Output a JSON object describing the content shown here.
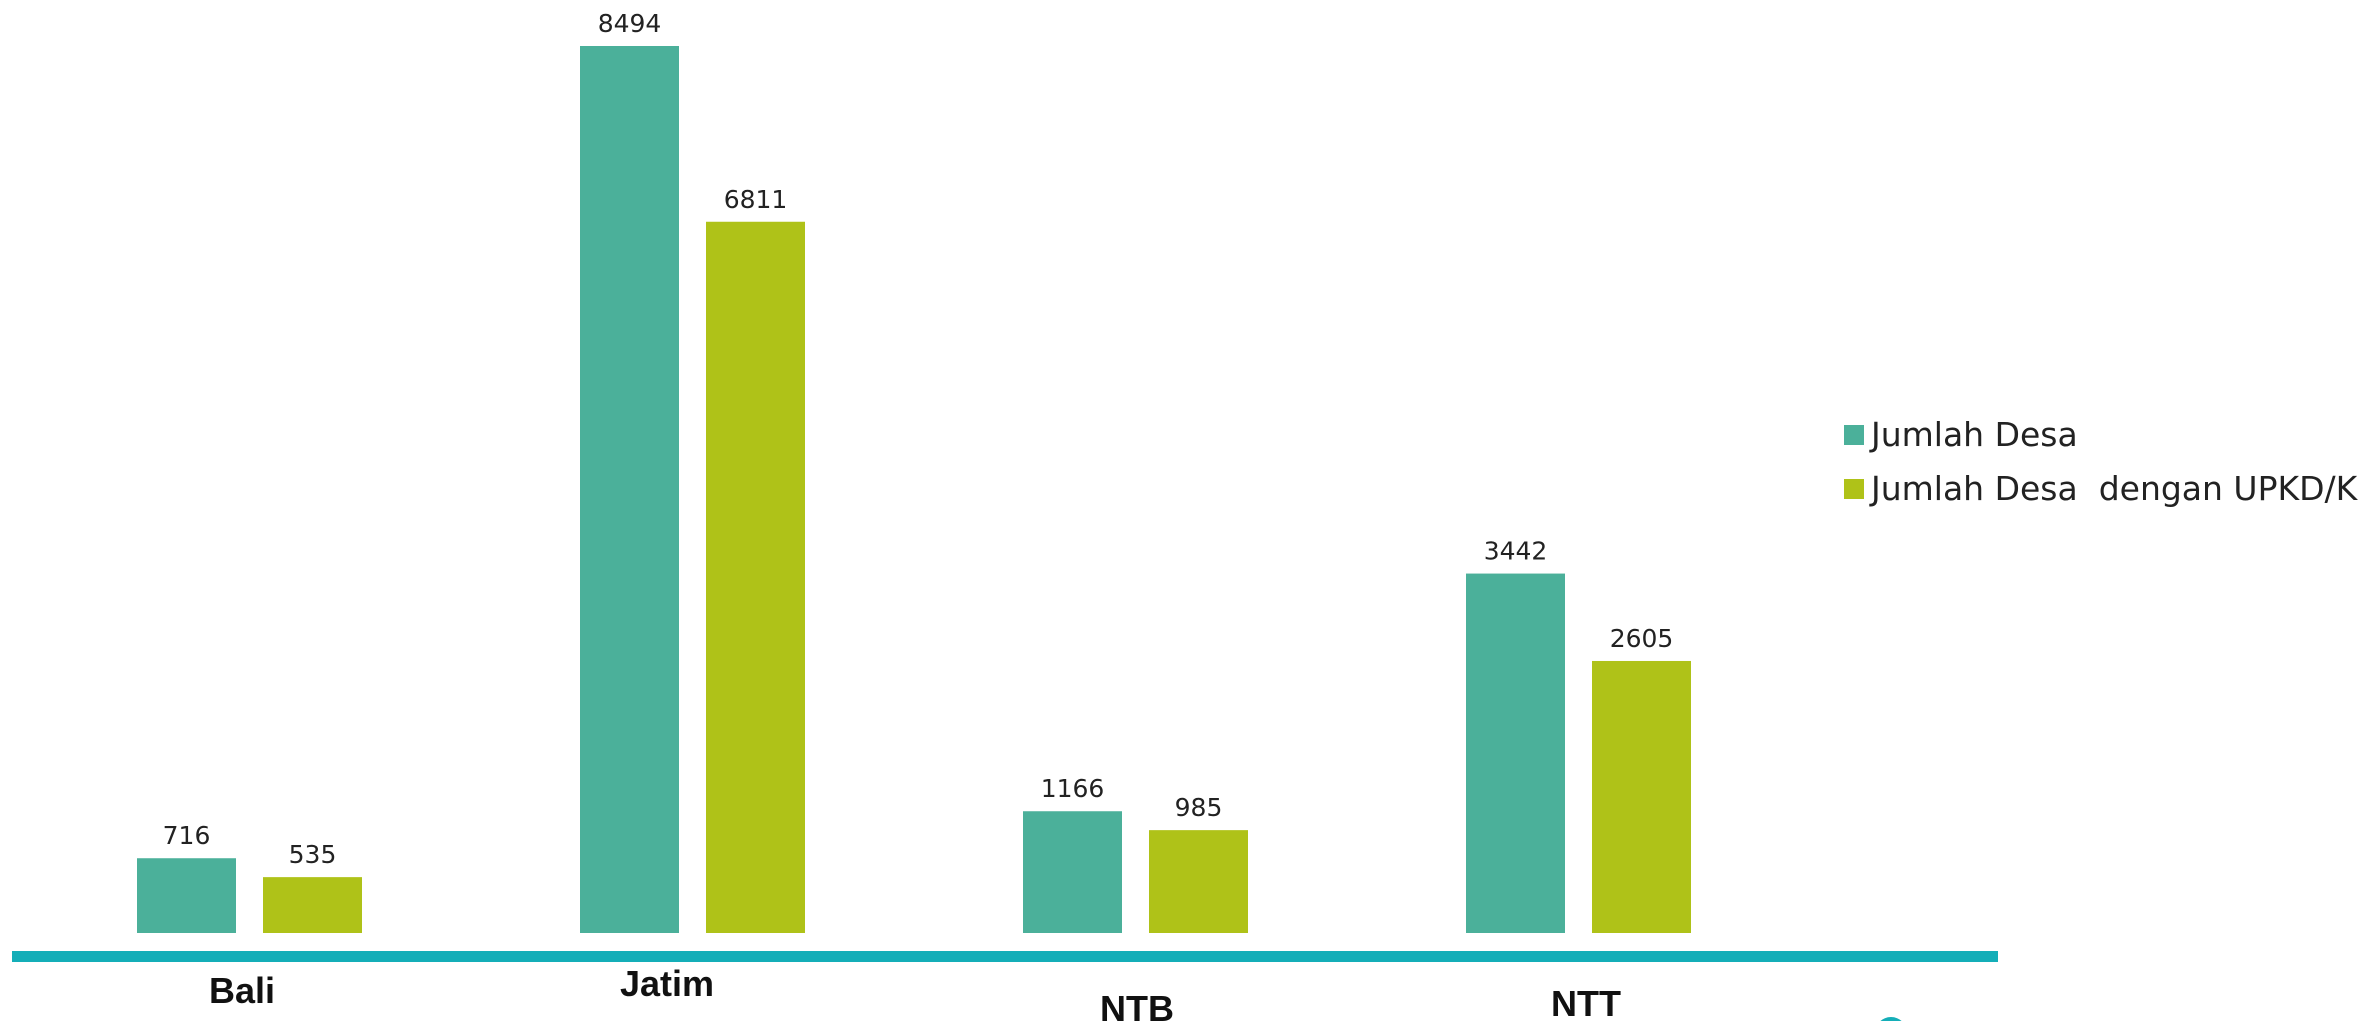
{
  "chart_data": {
    "type": "bar",
    "categories": [
      "Bali",
      "Jatim",
      "NTB",
      "NTT"
    ],
    "series": [
      {
        "name": "Jumlah Desa",
        "color": "#4BB09A",
        "values": [
          716,
          8494,
          1166,
          3442
        ]
      },
      {
        "name": "Jumlah Desa  dengan UPKD/K",
        "color": "#AFC218",
        "values": [
          535,
          6811,
          985,
          2605
        ]
      }
    ],
    "title": "",
    "xlabel": "",
    "ylabel": "",
    "ylim": [
      0,
      9000
    ],
    "grid": false,
    "legend_position": "right",
    "axis_color": "#14AEB8"
  }
}
